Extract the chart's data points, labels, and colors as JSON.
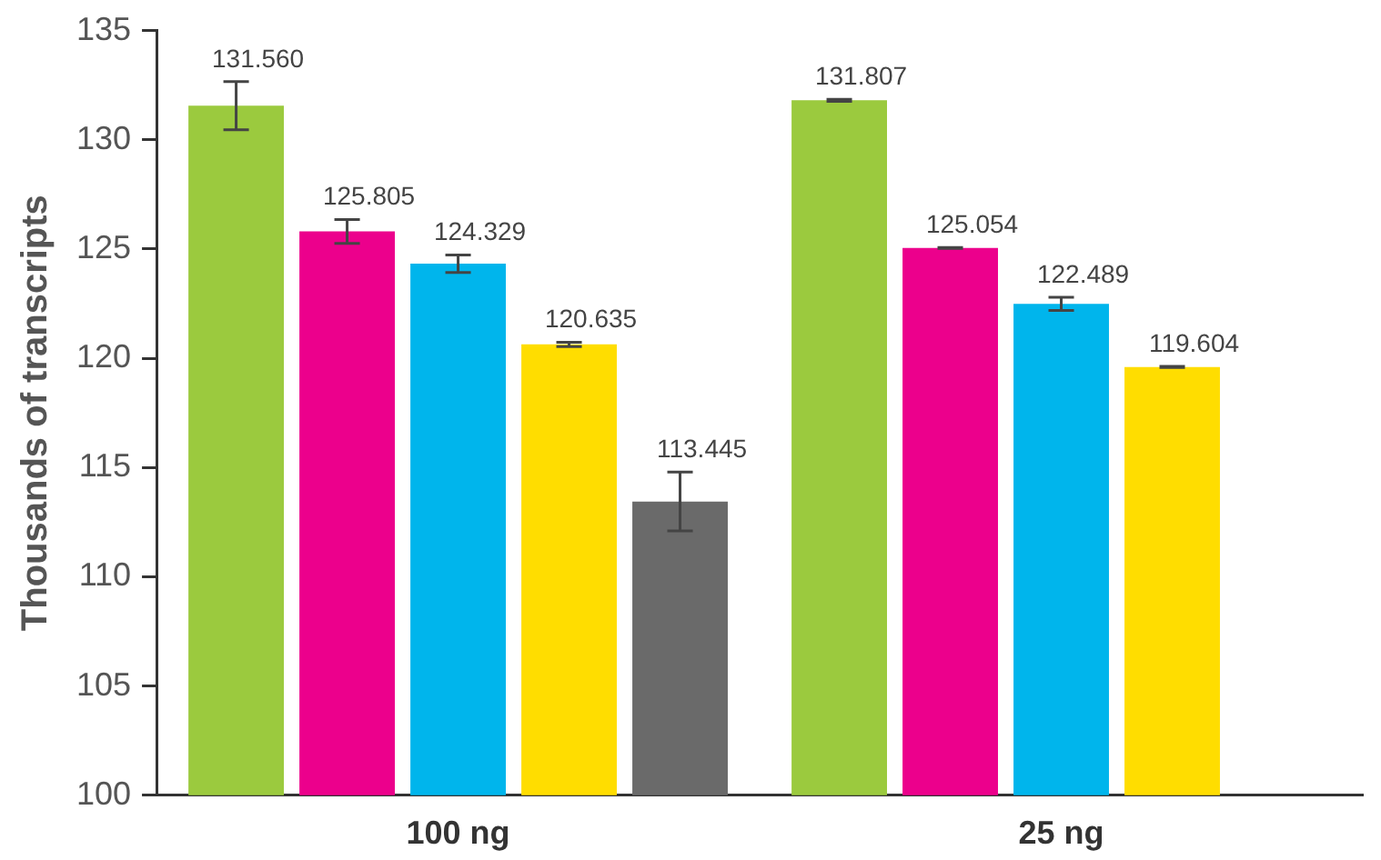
{
  "chart_data": {
    "type": "bar",
    "ylabel": "Thousands of transcripts",
    "categories": [
      "100 ng",
      "25 ng"
    ],
    "series": [
      {
        "color": "#9bca3e",
        "values": [
          131.56,
          131.807
        ],
        "errors": [
          1.1,
          0.05
        ],
        "value_labels": [
          "131.560",
          "131.807"
        ]
      },
      {
        "color": "#ec008c",
        "values": [
          125.805,
          125.054
        ],
        "errors": [
          0.55,
          0.02
        ],
        "value_labels": [
          "125.805",
          "125.054"
        ]
      },
      {
        "color": "#00b5ec",
        "values": [
          124.329,
          122.489
        ],
        "errors": [
          0.4,
          0.3
        ],
        "value_labels": [
          "124.329",
          "122.489"
        ]
      },
      {
        "color": "#ffdd00",
        "values": [
          120.635,
          119.604
        ],
        "errors": [
          0.1,
          0.03
        ],
        "value_labels": [
          "120.635",
          "119.604"
        ]
      },
      {
        "color": "#6a6a6a",
        "values": [
          113.445,
          null
        ],
        "errors": [
          1.35,
          null
        ],
        "value_labels": [
          "113.445",
          null
        ]
      }
    ],
    "ylim": [
      100,
      135
    ],
    "yticks": [
      100,
      105,
      110,
      115,
      120,
      125,
      130,
      135
    ],
    "grid": false,
    "legend": false
  }
}
